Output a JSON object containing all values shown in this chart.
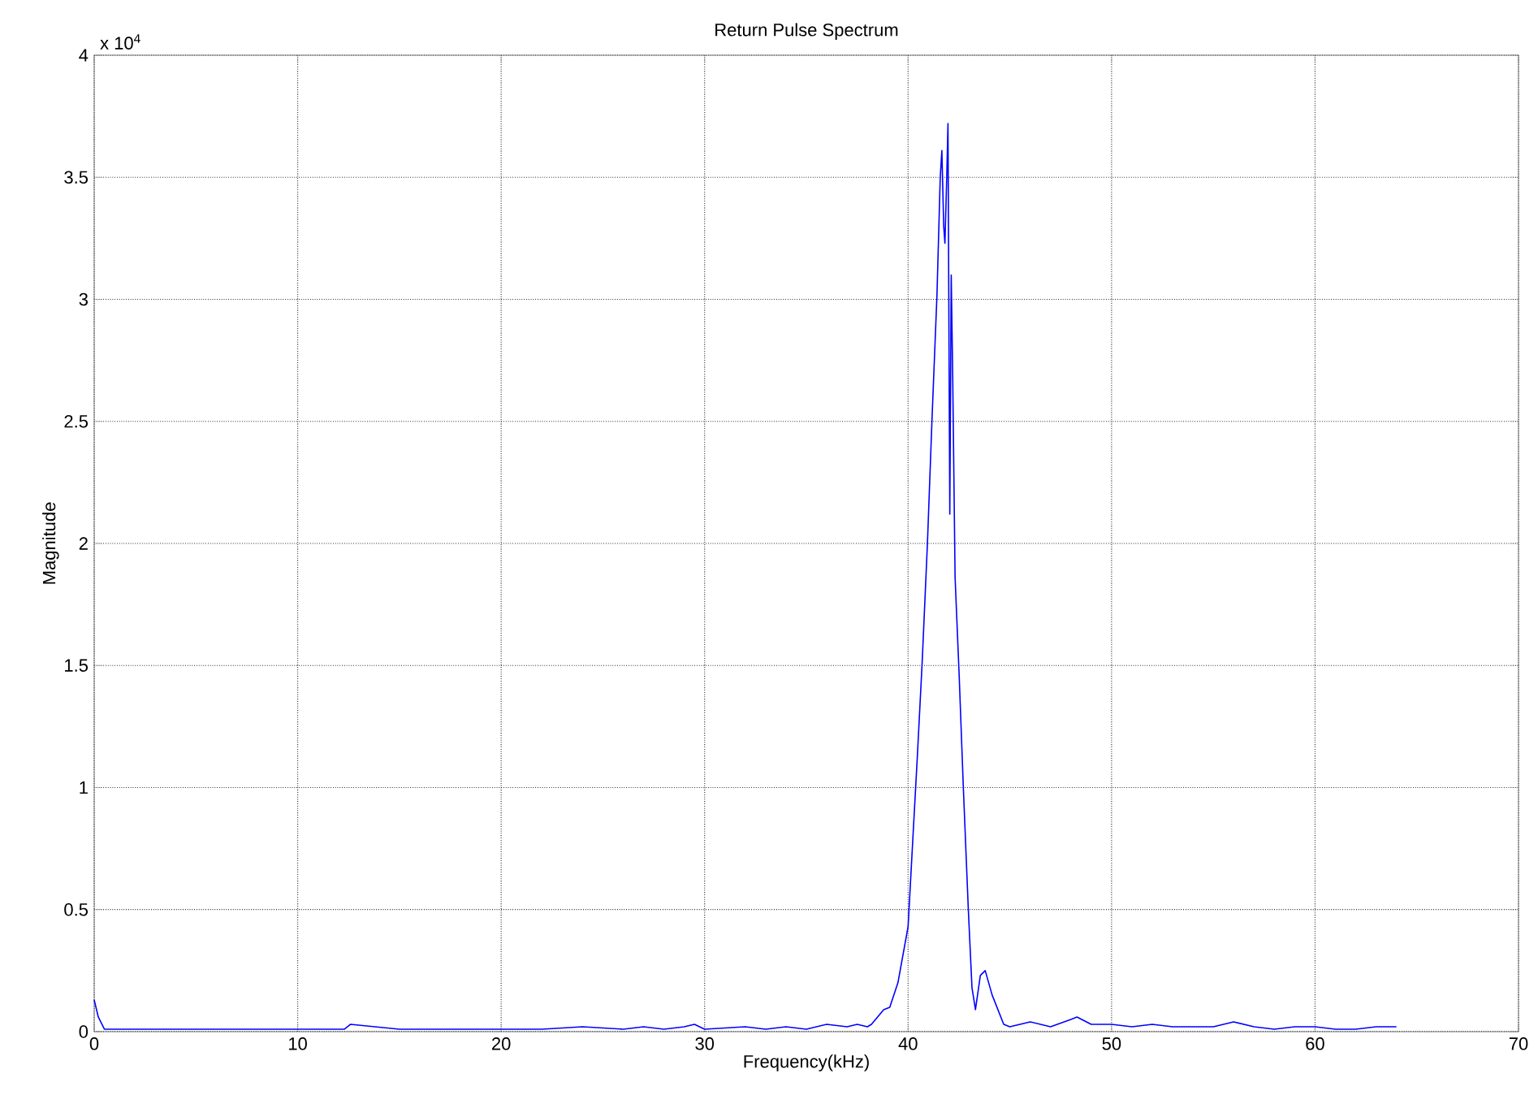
{
  "chart_data": {
    "type": "line",
    "title": "Return Pulse Spectrum",
    "xlabel": "Frequency(kHz)",
    "ylabel": "Magnitude",
    "annotations": [
      "x 10$^{4}$"
    ],
    "xlim": [
      0,
      70
    ],
    "ylim": [
      0,
      4
    ],
    "xticks": [
      0,
      10,
      20,
      30,
      40,
      50,
      60,
      70
    ],
    "yticks": [
      0,
      0.5,
      1,
      1.5,
      2,
      2.5,
      3,
      3.5,
      4
    ],
    "grid": true,
    "marker": "none",
    "line_style": "solid",
    "series": [
      {
        "color": "#0000ff",
        "x": [
          0,
          0.2,
          0.5,
          2,
          5,
          10,
          12.3,
          12.6,
          15,
          20,
          22,
          24,
          26,
          27,
          28,
          29,
          29.5,
          30,
          32,
          33,
          34,
          35,
          36,
          37,
          37.5,
          38,
          38.2,
          38.8,
          39.1,
          39.5,
          40,
          40.24,
          40.45,
          40.69,
          40.95,
          41.18,
          41.42,
          41.58,
          41.66,
          41.75,
          41.81,
          41.9,
          41.96,
          42.05,
          42.12,
          42.19,
          42.31,
          42.51,
          42.72,
          42.96,
          43.14,
          43.31,
          43.55,
          43.79,
          44.13,
          44.7,
          45,
          46,
          47,
          48,
          48.3,
          49,
          50,
          51,
          52,
          53,
          54,
          55,
          56,
          57,
          58,
          59,
          60,
          61,
          62,
          63,
          64
        ],
        "values": [
          0.13,
          0.06,
          0.01,
          0.01,
          0.01,
          0.01,
          0.01,
          0.03,
          0.01,
          0.01,
          0.01,
          0.02,
          0.01,
          0.02,
          0.01,
          0.02,
          0.03,
          0.01,
          0.02,
          0.01,
          0.02,
          0.01,
          0.03,
          0.02,
          0.03,
          0.02,
          0.03,
          0.09,
          0.1,
          0.2,
          0.43,
          0.8,
          1.12,
          1.51,
          2.0,
          2.52,
          3.02,
          3.5,
          3.61,
          3.3,
          3.23,
          3.5,
          3.72,
          2.12,
          3.1,
          2.7,
          1.86,
          1.46,
          0.99,
          0.5,
          0.18,
          0.09,
          0.23,
          0.25,
          0.15,
          0.03,
          0.02,
          0.04,
          0.02,
          0.05,
          0.06,
          0.03,
          0.03,
          0.02,
          0.03,
          0.02,
          0.02,
          0.02,
          0.04,
          0.02,
          0.01,
          0.02,
          0.02,
          0.01,
          0.01,
          0.02,
          0.02
        ]
      }
    ]
  }
}
